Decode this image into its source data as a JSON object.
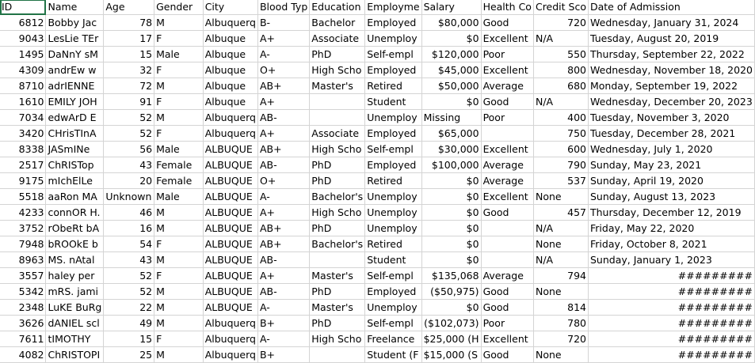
{
  "headers": [
    "ID",
    "Name",
    "Age",
    "Gender",
    "City",
    "Blood Typ",
    "Education",
    "Employme",
    "Salary",
    "Health Co",
    "Credit Sco",
    "Date of Admission"
  ],
  "rows": [
    [
      "6812",
      "Bobby Jac",
      "78",
      "M",
      "Albuquerq",
      "B-",
      "Bachelor",
      "Employed",
      "$80,000",
      "Good",
      "720",
      "Wednesday, January 31, 2024"
    ],
    [
      "9043",
      "LesLie TEr",
      "17",
      "F",
      "Albuque",
      "A+",
      "Associate",
      "Unemploy",
      "$0",
      "Excellent",
      "N/A",
      "Tuesday, August 20, 2019"
    ],
    [
      "1495",
      "DaNnY sM",
      "15",
      "Male",
      "Albuque",
      "A-",
      "PhD",
      "Self-empl",
      "$120,000",
      "Poor",
      "550",
      "Thursday, September 22, 2022"
    ],
    [
      "4309",
      "andrEw w",
      "32",
      "F",
      "Albuque",
      "O+",
      "High Scho",
      "Employed",
      "$45,000",
      "Excellent",
      "800",
      "Wednesday, November 18, 2020"
    ],
    [
      "8710",
      "adrIENNE",
      "72",
      "M",
      "Albuque",
      "AB+",
      "Master's",
      "Retired",
      "$50,000",
      "Average",
      "680",
      "Monday, September 19, 2022"
    ],
    [
      "1610",
      "EMILY JOH",
      "91",
      "F",
      "Albuque",
      "A+",
      "",
      "Student",
      "$0",
      "Good",
      "N/A",
      "Wednesday, December 20, 2023"
    ],
    [
      "7034",
      "edwArD E",
      "52",
      "M",
      "Albuquerq",
      "AB-",
      "",
      "Unemploy",
      "Missing",
      "Poor",
      "400",
      "Tuesday, November 3, 2020"
    ],
    [
      "3420",
      "CHrisTInA",
      "52",
      "F",
      "Albuquerq",
      "A+",
      "Associate",
      "Employed",
      "$65,000",
      "",
      "750",
      "Tuesday, December 28, 2021"
    ],
    [
      "8338",
      "JASmINe",
      "56",
      "Male",
      "ALBUQUE",
      "AB+",
      "High Scho",
      "Self-empl",
      "$30,000",
      "Excellent",
      "600",
      "Wednesday, July 1, 2020"
    ],
    [
      "2517",
      "ChRISTop",
      "43",
      "Female",
      "ALBUQUE",
      "AB-",
      "PhD",
      "Employed",
      "$100,000",
      "Average",
      "790",
      "Sunday, May 23, 2021"
    ],
    [
      "9175",
      "mIchElLe",
      "20",
      "Female",
      "ALBUQUE",
      "O+",
      "PhD",
      "Retired",
      "$0",
      "Average",
      "537",
      "Sunday, April 19, 2020"
    ],
    [
      "5518",
      "aaRon MA",
      "Unknown",
      "Male",
      "ALBUQUE",
      "A-",
      "Bachelor's",
      "Unemploy",
      "$0",
      "Excellent",
      "None",
      "Sunday, August 13, 2023"
    ],
    [
      "4233",
      "connOR H.",
      "46",
      "M",
      "ALBUQUE",
      "A+",
      "High Scho",
      "Unemploy",
      "$0",
      "Good",
      "457",
      "Thursday, December 12, 2019"
    ],
    [
      "3752",
      "rObeRt bA",
      "16",
      "M",
      "ALBUQUE",
      "AB+",
      "PhD",
      "Unemploy",
      "$0",
      "",
      "N/A",
      "Friday, May 22, 2020"
    ],
    [
      "7948",
      "bROOkE b",
      "54",
      "F",
      "ALBUQUE",
      "AB+",
      "Bachelor's",
      "Retired",
      "$0",
      "",
      "None",
      "Friday, October 8, 2021"
    ],
    [
      "8963",
      "MS. nAtal",
      "43",
      "M",
      "ALBUQUE",
      "AB-",
      "",
      "Student",
      "$0",
      "",
      "N/A",
      "Sunday, January 1, 2023"
    ],
    [
      "3557",
      "haley per",
      "52",
      "F",
      "ALBUQUE",
      "A+",
      "Master's",
      "Self-empl",
      "$135,068",
      "Average",
      "794",
      "#########"
    ],
    [
      "5342",
      "mRS. jami",
      "52",
      "M",
      "ALBUQUE",
      "AB-",
      "PhD",
      "Employed",
      "($50,975)",
      "Good",
      "None",
      "#########"
    ],
    [
      "2348",
      "LuKE BuRg",
      "22",
      "M",
      "ALBUQUE",
      "A-",
      "Master's",
      "Unemploy",
      "$0",
      "Good",
      "814",
      "#########"
    ],
    [
      "3626",
      "dANIEL scl",
      "49",
      "M",
      "Albuquerq",
      "B+",
      "PhD",
      "Self-empl",
      "($102,073)",
      "Poor",
      "780",
      "#########"
    ],
    [
      "7611",
      "tIMOTHY",
      "15",
      "F",
      "Albuquerq",
      "A-",
      "High Scho",
      "Freelance",
      "$25,000 (H",
      "Excellent",
      "720",
      "#########"
    ],
    [
      "4082",
      "ChRISTOPI",
      "25",
      "M",
      "Albuquerq",
      "B+",
      "",
      "Student (F",
      "$15,000 (S",
      "Good",
      "None",
      "#########"
    ]
  ]
}
